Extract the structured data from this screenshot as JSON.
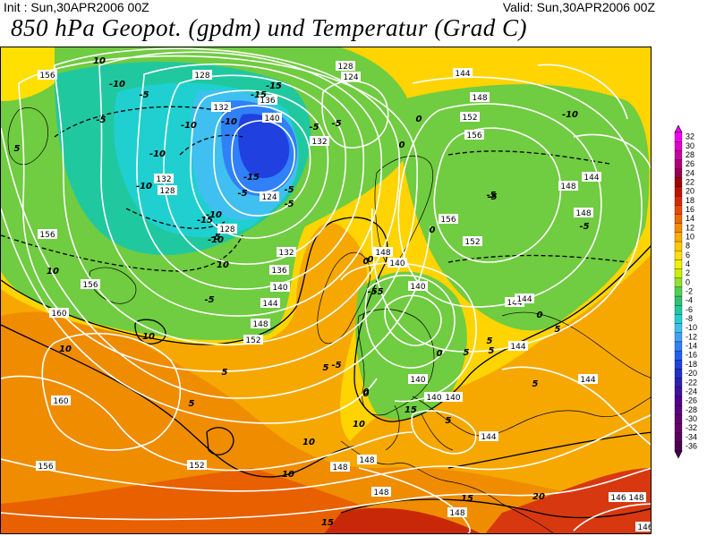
{
  "header": {
    "init": "Init : Sun,30APR2006 00Z",
    "valid": "Valid: Sun,30APR2006 00Z",
    "title": "850 hPa Geopot. (gpdm) und Temperatur (Grad C)"
  },
  "colorbar": {
    "labels": [
      "32",
      "30",
      "28",
      "26",
      "24",
      "22",
      "20",
      "18",
      "16",
      "14",
      "12",
      "10",
      "8",
      "6",
      "4",
      "2",
      "0",
      "-2",
      "-4",
      "-6",
      "-8",
      "-10",
      "-12",
      "-14",
      "-16",
      "-18",
      "-20",
      "-22",
      "-24",
      "-26",
      "-28",
      "-30",
      "-32",
      "-34",
      "-36"
    ],
    "colors": [
      "#f000f0",
      "#e000c8",
      "#c800a0",
      "#b00078",
      "#960050",
      "#a00000",
      "#c01000",
      "#d82800",
      "#e84800",
      "#f06800",
      "#f88c00",
      "#fcae00",
      "#ffc800",
      "#ffe000",
      "#f0f000",
      "#c8f000",
      "#90e030",
      "#50d050",
      "#30c070",
      "#20c8a0",
      "#20d0d0",
      "#40c0f0",
      "#40a0f8",
      "#3080f8",
      "#2060f0",
      "#2040e0",
      "#2030c8",
      "#3020b0",
      "#4010a0",
      "#500090",
      "#5a0080",
      "#600070",
      "#680068",
      "#5a0060",
      "#4a0050"
    ]
  },
  "map": {
    "height_labels": [
      {
        "t": "156"
      },
      {
        "t": "156"
      },
      {
        "t": "156"
      },
      {
        "t": "156"
      },
      {
        "t": "160"
      },
      {
        "t": "160"
      },
      {
        "t": "128"
      },
      {
        "t": "132"
      },
      {
        "t": "136"
      },
      {
        "t": "140"
      },
      {
        "t": "132"
      },
      {
        "t": "128"
      },
      {
        "t": "124"
      },
      {
        "t": "128"
      },
      {
        "t": "132"
      },
      {
        "t": "136"
      },
      {
        "t": "140"
      },
      {
        "t": "144"
      },
      {
        "t": "148"
      },
      {
        "t": "152"
      },
      {
        "t": "132"
      },
      {
        "t": "128"
      },
      {
        "t": "124"
      },
      {
        "t": "144"
      },
      {
        "t": "148"
      },
      {
        "t": "152"
      },
      {
        "t": "156"
      },
      {
        "t": "156"
      },
      {
        "t": "152"
      },
      {
        "t": "148"
      },
      {
        "t": "140"
      },
      {
        "t": "140"
      },
      {
        "t": "144"
      },
      {
        "t": "148"
      },
      {
        "t": "148"
      },
      {
        "t": "144"
      },
      {
        "t": "144"
      },
      {
        "t": "144"
      },
      {
        "t": "140"
      },
      {
        "t": "140"
      },
      {
        "t": "148"
      },
      {
        "t": "144"
      },
      {
        "t": "152"
      },
      {
        "t": "148"
      },
      {
        "t": "148"
      },
      {
        "t": "144"
      },
      {
        "t": "148"
      },
      {
        "t": "148"
      },
      {
        "t": "146"
      },
      {
        "t": "146"
      },
      {
        "t": "140"
      }
    ],
    "temp_labels": [
      {
        "t": "10"
      },
      {
        "t": "-5"
      },
      {
        "t": "-5"
      },
      {
        "t": "5"
      },
      {
        "t": "-10"
      },
      {
        "t": "-10"
      },
      {
        "t": "-10"
      },
      {
        "t": "-15"
      },
      {
        "t": "-15"
      },
      {
        "t": "-10"
      },
      {
        "t": "-5"
      },
      {
        "t": "-15"
      },
      {
        "t": "-10"
      },
      {
        "t": "-10"
      },
      {
        "t": "-15"
      },
      {
        "t": "-5"
      },
      {
        "t": "-5"
      },
      {
        "t": "-10"
      },
      {
        "t": "-5"
      },
      {
        "t": "-5"
      },
      {
        "t": "0"
      },
      {
        "t": "0"
      },
      {
        "t": "-5"
      },
      {
        "t": "-5"
      },
      {
        "t": "-10"
      },
      {
        "t": "-5"
      },
      {
        "t": "-5"
      },
      {
        "t": "0"
      },
      {
        "t": "-5"
      },
      {
        "t": "0"
      },
      {
        "t": "-5"
      },
      {
        "t": "0"
      },
      {
        "t": "0"
      },
      {
        "t": "-5"
      },
      {
        "t": "0"
      },
      {
        "t": "0"
      },
      {
        "t": "5"
      },
      {
        "t": "5"
      },
      {
        "t": "5"
      },
      {
        "t": "5"
      },
      {
        "t": "5"
      },
      {
        "t": "5"
      },
      {
        "t": "10"
      },
      {
        "t": "10"
      },
      {
        "t": "10"
      },
      {
        "t": "-5"
      },
      {
        "t": "5"
      },
      {
        "t": "5"
      },
      {
        "t": "5"
      },
      {
        "t": "0"
      },
      {
        "t": "10"
      },
      {
        "t": "10"
      },
      {
        "t": "10"
      },
      {
        "t": "15"
      },
      {
        "t": "15"
      },
      {
        "t": "20"
      },
      {
        "t": "10"
      },
      {
        "t": "15"
      }
    ]
  }
}
